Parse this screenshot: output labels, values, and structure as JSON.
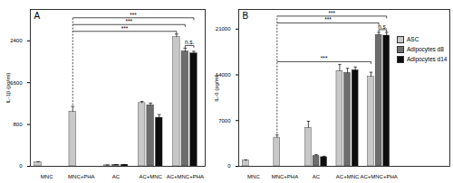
{
  "chart_data": [
    {
      "type": "bar",
      "title": "A",
      "y_label": "IL-1β (pg/ml)",
      "categories": [
        "MNC",
        "MNC+PHA",
        "AC",
        "AC+MNC",
        "AC+MNC+PHA"
      ],
      "series": [
        {
          "name": "ASC",
          "color": "#c8c8c8",
          "values": [
            75,
            1045,
            20,
            1210,
            2470
          ],
          "errors": [
            15,
            100,
            5,
            30,
            60
          ]
        },
        {
          "name": "Adipocytes d8",
          "color": "#6d6d6d",
          "values": [
            null,
            null,
            30,
            1170,
            2200
          ],
          "errors": [
            null,
            null,
            5,
            40,
            60
          ]
        },
        {
          "name": "Adipocytes d14",
          "color": "#0d0d0d",
          "values": [
            null,
            null,
            30,
            930,
            2160
          ],
          "errors": [
            null,
            null,
            5,
            60,
            40
          ]
        }
      ],
      "ylim": [
        0,
        3000
      ],
      "yticks": [
        0,
        800,
        1600,
        2400
      ],
      "annotations": [
        {
          "from": {
            "category": "MNC+PHA",
            "series": "ASC"
          },
          "to": {
            "category": "AC+MNC+PHA",
            "series": "ASC"
          },
          "label": "***"
        },
        {
          "from": {
            "category": "MNC+PHA",
            "series": "ASC"
          },
          "to": {
            "category": "AC+MNC+PHA",
            "series": "Adipocytes d8"
          },
          "label": "***"
        },
        {
          "from": {
            "category": "MNC+PHA",
            "series": "ASC"
          },
          "to": {
            "category": "AC+MNC+PHA",
            "series": "Adipocytes d14"
          },
          "label": "***"
        },
        {
          "from": {
            "category": "AC+MNC+PHA",
            "series": "Adipocytes d8"
          },
          "to": {
            "category": "AC+MNC+PHA",
            "series": "Adipocytes d14"
          },
          "label": "n.s."
        }
      ]
    },
    {
      "type": "bar",
      "title": "B",
      "y_label": "IL-6 (pg/ml)",
      "categories": [
        "MNC",
        "MNC+PHA",
        "AC",
        "AC+MNC",
        "AC+MNC+PHA"
      ],
      "series": [
        {
          "name": "ASC",
          "color": "#c8c8c8",
          "values": [
            860,
            4400,
            5900,
            14600,
            13700
          ],
          "errors": [
            150,
            400,
            1000,
            1000,
            700
          ]
        },
        {
          "name": "Adipocytes d8",
          "color": "#6d6d6d",
          "values": [
            null,
            null,
            1600,
            14300,
            20100
          ],
          "errors": [
            null,
            null,
            200,
            700,
            400
          ]
        },
        {
          "name": "Adipocytes d14",
          "color": "#0d0d0d",
          "values": [
            null,
            null,
            1400,
            14700,
            20000
          ],
          "errors": [
            null,
            null,
            150,
            500,
            500
          ]
        }
      ],
      "ylim": [
        0,
        24000
      ],
      "yticks": [
        0,
        7000,
        14000,
        21000
      ],
      "legend": "upper right",
      "annotations": [
        {
          "from": {
            "category": "MNC+PHA",
            "series": "ASC"
          },
          "to": {
            "category": "AC+MNC+PHA",
            "series": "ASC"
          },
          "label": "***"
        },
        {
          "from": {
            "category": "MNC+PHA",
            "series": "ASC"
          },
          "to": {
            "category": "AC+MNC+PHA",
            "series": "Adipocytes d8"
          },
          "label": "***"
        },
        {
          "from": {
            "category": "MNC+PHA",
            "series": "ASC"
          },
          "to": {
            "category": "AC+MNC+PHA",
            "series": "Adipocytes d14"
          },
          "label": "***"
        },
        {
          "from": {
            "category": "AC+MNC+PHA",
            "series": "Adipocytes d8"
          },
          "to": {
            "category": "AC+MNC+PHA",
            "series": "Adipocytes d14"
          },
          "label": "n.s."
        }
      ]
    }
  ]
}
